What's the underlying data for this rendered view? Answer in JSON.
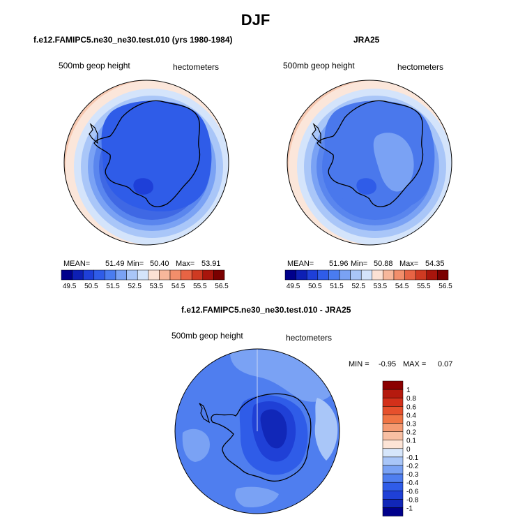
{
  "figure": {
    "title": "DJF"
  },
  "chart_data": [
    {
      "type": "heatmap",
      "projection": "south-polar stereographic",
      "title": "f.e12.FAMIPC5.ne30_ne30.test.010 (yrs 1980-1984)",
      "left_label": "500mb geop height",
      "right_label": "hectometers",
      "stats": {
        "mean_label": "MEAN=",
        "mean": "51.49",
        "min_label": "Min=",
        "min": "50.40",
        "max_label": "Max=",
        "max": "53.91"
      },
      "colorbar_ticks": [
        "49.5",
        "50.5",
        "51.5",
        "52.5",
        "53.5",
        "54.5",
        "55.5",
        "56.5"
      ],
      "colorbar_colors": [
        "#00008b",
        "#0d1fb4",
        "#1e3fd8",
        "#2f5ce8",
        "#4a7cf0",
        "#7aa2f4",
        "#a9c6f8",
        "#d4e4fb",
        "#fbe1d4",
        "#f7b79b",
        "#f28e6b",
        "#e76444",
        "#cf3a22",
        "#a8150c",
        "#7a0000"
      ],
      "rings": [
        {
          "level": 54.0,
          "color": "#f7c9b2"
        },
        {
          "level": 53.6,
          "color": "#fbe6da"
        },
        {
          "level": 53.0,
          "color": "#d4e4fb"
        },
        {
          "level": 52.6,
          "color": "#a9c6f8"
        },
        {
          "level": 52.0,
          "color": "#7aa2f4"
        },
        {
          "level": 51.6,
          "color": "#5a86ee"
        },
        {
          "level": 51.0,
          "color": "#3f68e4"
        }
      ]
    },
    {
      "type": "heatmap",
      "projection": "south-polar stereographic",
      "title": "JRA25",
      "left_label": "500mb geop height",
      "right_label": "hectometers",
      "stats": {
        "mean_label": "MEAN=",
        "mean": "51.96",
        "min_label": "Min=",
        "min": "50.88",
        "max_label": "Max=",
        "max": "54.35"
      },
      "colorbar_ticks": [
        "49.5",
        "50.5",
        "51.5",
        "52.5",
        "53.5",
        "54.5",
        "55.5",
        "56.5"
      ],
      "colorbar_colors": [
        "#00008b",
        "#0d1fb4",
        "#1e3fd8",
        "#2f5ce8",
        "#4a7cf0",
        "#7aa2f4",
        "#a9c6f8",
        "#d4e4fb",
        "#fbe1d4",
        "#f7b79b",
        "#f28e6b",
        "#e76444",
        "#cf3a22",
        "#a8150c",
        "#7a0000"
      ],
      "rings": [
        {
          "level": 54.3,
          "color": "#f7c9b2"
        },
        {
          "level": 54.0,
          "color": "#fbe6da"
        },
        {
          "level": 53.5,
          "color": "#d4e4fb"
        },
        {
          "level": 53.0,
          "color": "#a9c6f8"
        },
        {
          "level": 52.5,
          "color": "#7aa2f4"
        },
        {
          "level": 52.0,
          "color": "#5a86ee"
        },
        {
          "level": 51.5,
          "color": "#4a78ec"
        }
      ]
    },
    {
      "type": "heatmap",
      "projection": "south-polar stereographic",
      "title": "f.e12.FAMIPC5.ne30_ne30.test.010 - JRA25",
      "left_label": "500mb geop height",
      "right_label": "hectometers",
      "stats": {
        "min_label": "MIN =",
        "min": "-0.95",
        "max_label": "MAX =",
        "max": "0.07"
      },
      "colorbar_ticks": [
        "1",
        "0.8",
        "0.6",
        "0.4",
        "0.3",
        "0.2",
        "0.1",
        "0",
        "-0.1",
        "-0.2",
        "-0.3",
        "-0.4",
        "-0.6",
        "-0.8",
        "-1"
      ],
      "colorbar_colors": [
        "#8b0000",
        "#b51a0e",
        "#d3301a",
        "#e6502c",
        "#f07444",
        "#f59a72",
        "#f8bfa3",
        "#fde4d6",
        "#d6e6fb",
        "#a9c6f8",
        "#7aa2f4",
        "#4f7eef",
        "#2f5ce8",
        "#1f40d6",
        "#1127b8",
        "#00008b"
      ]
    }
  ]
}
